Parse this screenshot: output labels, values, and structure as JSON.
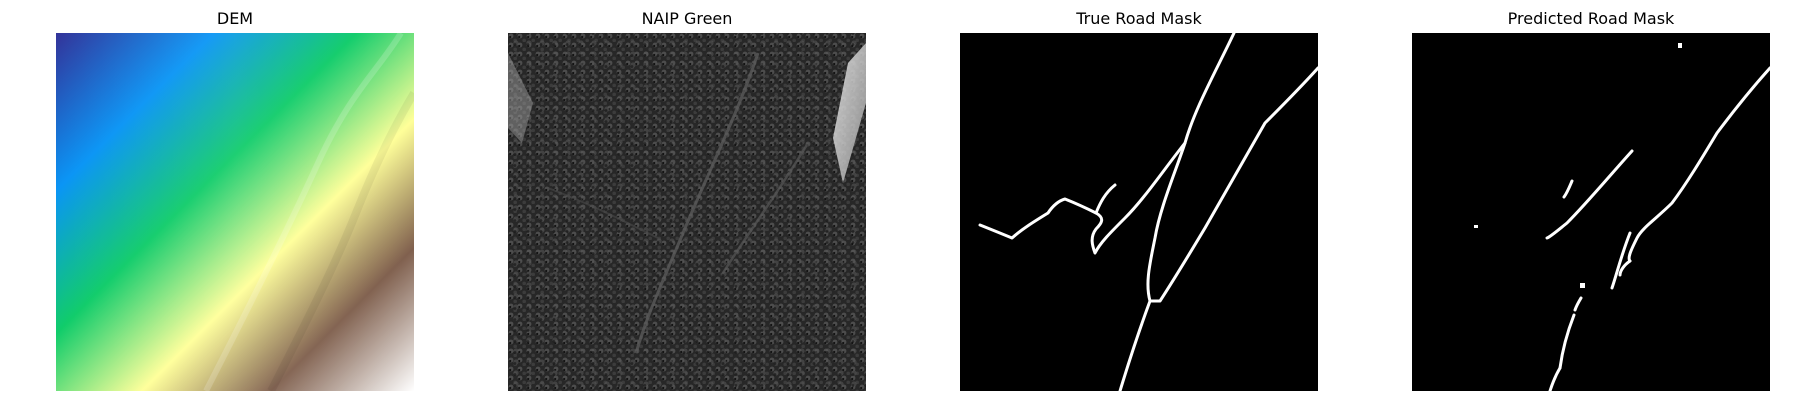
{
  "panels": [
    {
      "title": "DEM"
    },
    {
      "title": "NAIP Green"
    },
    {
      "title": "True Road Mask"
    },
    {
      "title": "Predicted Road Mask"
    }
  ],
  "colors": {
    "background": "#ffffff",
    "title_text": "#000000",
    "dem_colormap": [
      "#333399",
      "#0a95f5",
      "#10cc6a",
      "#ffff99",
      "#80604e",
      "#ffffff"
    ],
    "naip_base": "#262626",
    "naip_bright": "#d9d9d9",
    "mask_background": "#000000",
    "mask_road": "#ffffff"
  },
  "icons": [
    "dem-elevation-raster",
    "naip-green-band-image",
    "binary-road-mask"
  ]
}
